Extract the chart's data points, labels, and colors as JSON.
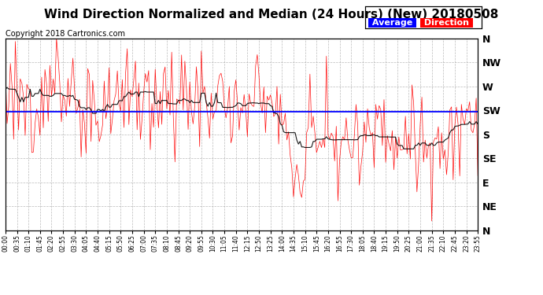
{
  "title": "Wind Direction Normalized and Median (24 Hours) (New) 20180508",
  "copyright": "Copyright 2018 Cartronics.com",
  "legend_labels": [
    "Average",
    "Direction"
  ],
  "legend_bg_colors": [
    "#0000cc",
    "#cc0000"
  ],
  "y_tick_labels": [
    "N",
    "NW",
    "W",
    "SW",
    "S",
    "SE",
    "E",
    "NE",
    "N"
  ],
  "y_tick_values": [
    0,
    45,
    90,
    135,
    180,
    225,
    270,
    315,
    360
  ],
  "avg_direction": 137,
  "background_color": "#ffffff",
  "grid_color": "#aaaaaa",
  "title_fontsize": 11,
  "data_seed": 123,
  "n_points": 288,
  "x_tick_interval_minutes": 35
}
